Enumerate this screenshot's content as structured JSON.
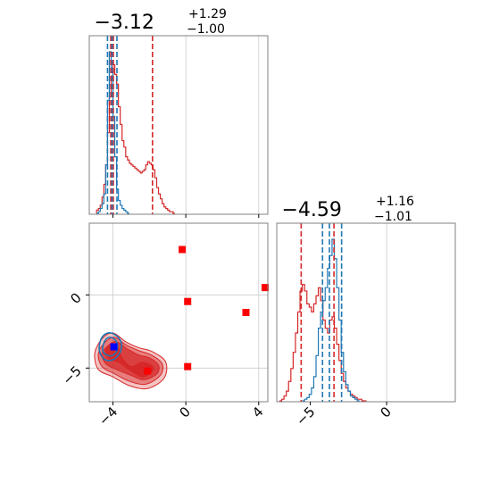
{
  "chart_data": {
    "type": "corner",
    "colors": {
      "red": "#d62728",
      "blue": "#1f77b4",
      "grid": "#cccccc",
      "frame": "#808080"
    },
    "panels": [
      {
        "id": "marginal-param1",
        "type": "histogram",
        "title": {
          "main": "−3.12",
          "sup": "+1.29",
          "sub": "−1.00"
        },
        "xlim": [
          -5.3,
          4.5
        ],
        "xticks": [
          -4,
          0,
          4
        ],
        "grid_x": [
          0,
          4
        ],
        "red_quantiles": [
          -4.12,
          -3.98,
          -1.83
        ],
        "blue_quantiles": [
          -4.3,
          -4.05,
          -3.78
        ],
        "red_hist": {
          "x": [
            -4.85,
            -4.75,
            -4.65,
            -4.55,
            -4.45,
            -4.35,
            -4.25,
            -4.15,
            -4.05,
            -3.95,
            -3.85,
            -3.75,
            -3.65,
            -3.55,
            -3.45,
            -3.35,
            -3.25,
            -3.15,
            -3.05,
            -2.95,
            -2.85,
            -2.75,
            -2.65,
            -2.55,
            -2.45,
            -2.35,
            -2.25,
            -2.15,
            -2.05,
            -1.95,
            -1.85,
            -1.75,
            -1.65,
            -1.55,
            -1.45,
            -1.35,
            -1.25,
            -1.15,
            -1.05,
            -0.95,
            -0.85,
            -0.75,
            -0.65
          ],
          "y": [
            0.02,
            0.03,
            0.05,
            0.1,
            0.18,
            0.3,
            0.5,
            0.72,
            0.85,
            0.92,
            0.86,
            0.8,
            0.66,
            0.55,
            0.45,
            0.41,
            0.35,
            0.33,
            0.31,
            0.3,
            0.29,
            0.28,
            0.27,
            0.26,
            0.25,
            0.26,
            0.27,
            0.3,
            0.32,
            0.31,
            0.3,
            0.27,
            0.22,
            0.16,
            0.12,
            0.09,
            0.06,
            0.04,
            0.03,
            0.02,
            0.01,
            0.01,
            0.0
          ]
        },
        "blue_hist": {
          "x": [
            -4.85,
            -4.75,
            -4.65,
            -4.55,
            -4.45,
            -4.35,
            -4.25,
            -4.15,
            -4.05,
            -3.95,
            -3.85,
            -3.75,
            -3.65,
            -3.55,
            -3.45,
            -3.35,
            -3.25,
            -3.15
          ],
          "y": [
            0.0,
            0.01,
            0.03,
            0.06,
            0.12,
            0.3,
            0.7,
            1.0,
            0.9,
            0.6,
            0.35,
            0.15,
            0.08,
            0.05,
            0.03,
            0.02,
            0.01,
            0.0
          ]
        }
      },
      {
        "id": "marginal-param2",
        "type": "histogram",
        "title": {
          "main": "−4.59",
          "sup": "+1.16",
          "sub": "−1.01"
        },
        "xlim": [
          -7.2,
          4.5
        ],
        "xticks": [
          -5,
          0
        ],
        "grid_x": [
          0
        ],
        "red_quantiles": [
          -5.6,
          -3.45
        ],
        "blue_quantiles": [
          -4.2,
          -3.75,
          -2.95
        ],
        "red_hist": {
          "x": [
            -6.95,
            -6.8,
            -6.65,
            -6.5,
            -6.35,
            -6.2,
            -6.05,
            -5.9,
            -5.75,
            -5.6,
            -5.45,
            -5.3,
            -5.15,
            -5.0,
            -4.85,
            -4.7,
            -4.55,
            -4.4,
            -4.25,
            -4.1,
            -3.95,
            -3.8,
            -3.65,
            -3.5,
            -3.35,
            -3.2,
            -3.05,
            -2.9,
            -2.75,
            -2.6,
            -2.45,
            -2.3,
            -2.15,
            -2.0,
            -1.85,
            -1.7,
            -1.55,
            -1.4
          ],
          "y": [
            0.0,
            0.01,
            0.03,
            0.06,
            0.12,
            0.2,
            0.3,
            0.42,
            0.55,
            0.68,
            0.72,
            0.68,
            0.6,
            0.58,
            0.55,
            0.6,
            0.65,
            0.7,
            0.62,
            0.5,
            0.45,
            0.42,
            0.5,
            0.52,
            0.45,
            0.35,
            0.25,
            0.17,
            0.12,
            0.08,
            0.06,
            0.04,
            0.03,
            0.02,
            0.01,
            0.01,
            0.0,
            0.0
          ]
        },
        "blue_hist": {
          "x": [
            -5.45,
            -5.3,
            -5.15,
            -5.0,
            -4.85,
            -4.7,
            -4.55,
            -4.4,
            -4.25,
            -4.1,
            -3.95,
            -3.8,
            -3.65,
            -3.5,
            -3.35,
            -3.2,
            -3.05,
            -2.9,
            -2.75,
            -2.6,
            -2.45,
            -2.3,
            -2.15,
            -2.0,
            -1.85
          ],
          "y": [
            0.0,
            0.01,
            0.02,
            0.04,
            0.08,
            0.15,
            0.28,
            0.45,
            0.55,
            0.62,
            0.7,
            0.82,
            0.9,
            1.0,
            0.88,
            0.7,
            0.5,
            0.3,
            0.18,
            0.1,
            0.06,
            0.03,
            0.02,
            0.01,
            0.0
          ]
        }
      },
      {
        "id": "joint",
        "type": "scatter-contour",
        "xlim": [
          -5.3,
          4.5
        ],
        "ylim": [
          -7.3,
          4.9
        ],
        "xticks": [
          -4,
          0,
          4
        ],
        "yticks": [
          -5,
          0
        ],
        "grid_x": [
          -4,
          0,
          4
        ],
        "grid_y": [
          -5,
          0
        ],
        "red_contours": [
          {
            "level": 1,
            "center": [
              -3.2,
              -4.7
            ],
            "points": [
              [
                -5.0,
                -4.0
              ],
              [
                -4.6,
                -3.0
              ],
              [
                -4.0,
                -2.6
              ],
              [
                -3.3,
                -3.2
              ],
              [
                -2.6,
                -3.6
              ],
              [
                -1.8,
                -3.9
              ],
              [
                -1.1,
                -4.6
              ],
              [
                -1.2,
                -5.7
              ],
              [
                -2.1,
                -6.4
              ],
              [
                -3.1,
                -6.2
              ],
              [
                -4.0,
                -5.6
              ],
              [
                -4.8,
                -5.1
              ]
            ]
          },
          {
            "level": 2,
            "center": [
              -3.2,
              -4.7
            ],
            "points": [
              [
                -4.8,
                -4.0
              ],
              [
                -4.4,
                -3.2
              ],
              [
                -3.9,
                -2.9
              ],
              [
                -3.3,
                -3.4
              ],
              [
                -2.6,
                -3.8
              ],
              [
                -1.9,
                -4.1
              ],
              [
                -1.3,
                -4.7
              ],
              [
                -1.4,
                -5.5
              ],
              [
                -2.2,
                -6.1
              ],
              [
                -3.1,
                -5.9
              ],
              [
                -3.9,
                -5.4
              ],
              [
                -4.6,
                -4.9
              ]
            ]
          },
          {
            "level": 3,
            "center": [
              -3.2,
              -4.7
            ],
            "points": [
              [
                -4.6,
                -4.0
              ],
              [
                -4.2,
                -3.4
              ],
              [
                -3.8,
                -3.2
              ],
              [
                -3.2,
                -3.7
              ],
              [
                -2.6,
                -4.1
              ],
              [
                -2.0,
                -4.3
              ],
              [
                -1.5,
                -4.8
              ],
              [
                -1.6,
                -5.4
              ],
              [
                -2.3,
                -5.8
              ],
              [
                -3.0,
                -5.5
              ],
              [
                -3.8,
                -5.1
              ],
              [
                -4.4,
                -4.7
              ]
            ]
          },
          {
            "level": 4,
            "center": [
              -3.2,
              -4.7
            ],
            "points": [
              [
                -4.4,
                -3.7
              ],
              [
                -4.0,
                -3.4
              ],
              [
                -3.7,
                -3.6
              ],
              [
                -3.5,
                -4.3
              ],
              [
                -3.0,
                -4.9
              ],
              [
                -2.4,
                -4.6
              ],
              [
                -1.8,
                -4.9
              ],
              [
                -1.9,
                -5.3
              ],
              [
                -2.4,
                -5.6
              ],
              [
                -3.0,
                -5.2
              ],
              [
                -3.7,
                -4.6
              ],
              [
                -4.2,
                -4.4
              ]
            ]
          }
        ],
        "blue_contours": [
          {
            "level": 1,
            "points": [
              [
                -4.75,
                -3.5
              ],
              [
                -4.6,
                -2.9
              ],
              [
                -4.25,
                -2.6
              ],
              [
                -3.85,
                -2.75
              ],
              [
                -3.55,
                -3.25
              ],
              [
                -3.6,
                -3.9
              ],
              [
                -3.95,
                -4.4
              ],
              [
                -4.4,
                -4.45
              ],
              [
                -4.7,
                -4.0
              ]
            ]
          },
          {
            "level": 2,
            "points": [
              [
                -4.55,
                -3.5
              ],
              [
                -4.4,
                -3.05
              ],
              [
                -4.15,
                -2.9
              ],
              [
                -3.9,
                -3.05
              ],
              [
                -3.75,
                -3.4
              ],
              [
                -3.8,
                -3.85
              ],
              [
                -4.05,
                -4.15
              ],
              [
                -4.35,
                -4.1
              ],
              [
                -4.55,
                -3.85
              ]
            ]
          }
        ],
        "red_scatter": [
          [
            -0.2,
            3.1
          ],
          [
            0.1,
            -0.45
          ],
          [
            3.3,
            -1.2
          ],
          [
            4.5,
            0.5
          ],
          [
            0.1,
            -4.9
          ],
          [
            -2.1,
            -5.2
          ]
        ],
        "red_truth": [
          -2.1,
          -5.2
        ],
        "blue_truth": [
          -3.95,
          -3.55
        ]
      }
    ]
  }
}
